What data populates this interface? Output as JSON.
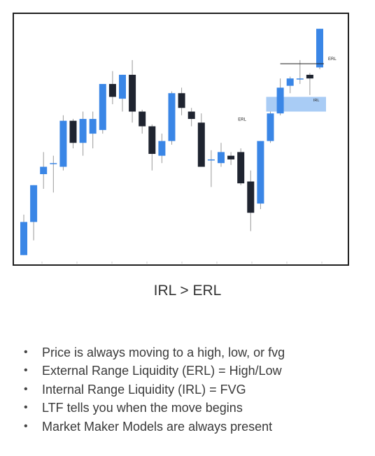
{
  "chart_data": {
    "type": "candlestick",
    "colors": {
      "up": "#3a86e6",
      "down": "#1f2430",
      "wick": "#9a9a9a",
      "zone": "#a9ccf5",
      "line": "#1f1f1f"
    },
    "candles": [
      {
        "o": 2,
        "h": 24,
        "l": 2,
        "c": 20
      },
      {
        "o": 20,
        "h": 40,
        "l": 10,
        "c": 40
      },
      {
        "o": 46,
        "h": 58,
        "l": 38,
        "c": 50
      },
      {
        "o": 52,
        "h": 56,
        "l": 36,
        "c": 52
      },
      {
        "o": 50,
        "h": 78,
        "l": 48,
        "c": 75
      },
      {
        "o": 75,
        "h": 76,
        "l": 60,
        "c": 63
      },
      {
        "o": 63,
        "h": 80,
        "l": 56,
        "c": 76
      },
      {
        "o": 68,
        "h": 80,
        "l": 60,
        "c": 76
      },
      {
        "o": 70,
        "h": 94,
        "l": 68,
        "c": 95
      },
      {
        "o": 95,
        "h": 102,
        "l": 84,
        "c": 88
      },
      {
        "o": 87,
        "h": 100,
        "l": 80,
        "c": 100
      },
      {
        "o": 100,
        "h": 108,
        "l": 74,
        "c": 80
      },
      {
        "o": 80,
        "h": 81,
        "l": 68,
        "c": 72
      },
      {
        "o": 72,
        "h": 73,
        "l": 48,
        "c": 57
      },
      {
        "o": 56,
        "h": 68,
        "l": 52,
        "c": 64
      },
      {
        "o": 64,
        "h": 91,
        "l": 62,
        "c": 90
      },
      {
        "o": 90,
        "h": 93,
        "l": 78,
        "c": 82
      },
      {
        "o": 80,
        "h": 82,
        "l": 72,
        "c": 76
      },
      {
        "o": 74,
        "h": 79,
        "l": 50,
        "c": 50
      },
      {
        "o": 54,
        "h": 59,
        "l": 39,
        "c": 54
      },
      {
        "o": 52,
        "h": 63,
        "l": 50,
        "c": 58
      },
      {
        "o": 56,
        "h": 58,
        "l": 51,
        "c": 54
      },
      {
        "o": 58,
        "h": 60,
        "l": 40,
        "c": 41
      },
      {
        "o": 42,
        "h": 48,
        "l": 15,
        "c": 25
      },
      {
        "o": 30,
        "h": 64,
        "l": 27,
        "c": 64
      },
      {
        "o": 64,
        "h": 80,
        "l": 63,
        "c": 79
      },
      {
        "o": 79,
        "h": 98,
        "l": 78,
        "c": 93
      },
      {
        "o": 94,
        "h": 99,
        "l": 90,
        "c": 98
      },
      {
        "o": 98,
        "h": 108,
        "l": 95,
        "c": 98
      },
      {
        "o": 100,
        "h": 101,
        "l": 89,
        "c": 98
      },
      {
        "o": 104,
        "h": 125,
        "l": 103,
        "c": 125
      }
    ],
    "annotations": [
      {
        "label": "ERL",
        "type": "level",
        "price": 106
      },
      {
        "label": "ERL",
        "type": "level",
        "price": 75
      },
      {
        "label": "IRL",
        "type": "zone",
        "low": 80,
        "high": 88
      }
    ],
    "ylim": [
      0,
      130
    ],
    "grid": false
  },
  "caption": "IRL > ERL",
  "bullets": [
    "Price is always moving to a high, low, or fvg",
    "External Range Liquidity (ERL) = High/Low",
    "Internal Range Liquidity (IRL) = FVG",
    "LTF tells you when the move begins",
    "Market Maker Models are always present"
  ],
  "bullet_symbol": "•"
}
